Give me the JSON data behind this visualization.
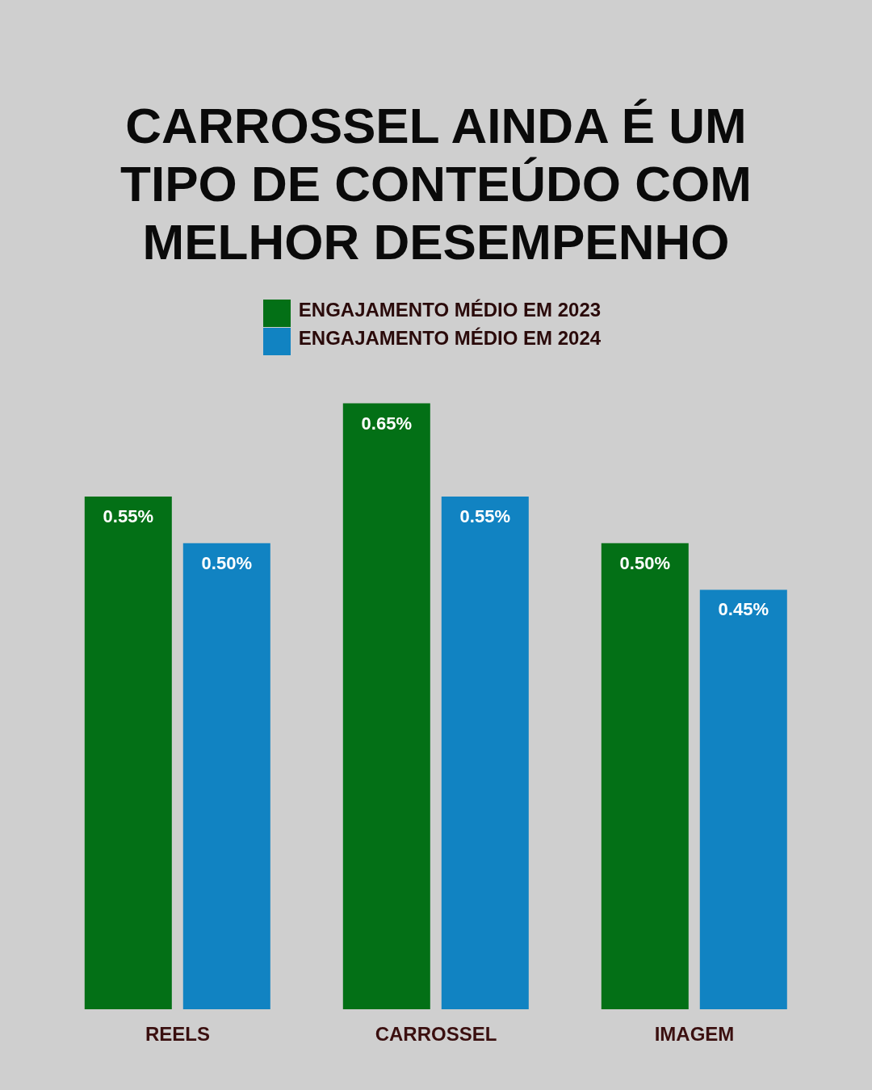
{
  "chart_data": {
    "type": "bar",
    "title": "CARROSSEL AINDA É UM TIPO DE CONTEÚDO COM MELHOR DESEMPENHO",
    "categories": [
      "REELS",
      "CARROSSEL",
      "IMAGEM"
    ],
    "series": [
      {
        "name": "ENGAJAMENTO MÉDIO EM 2023",
        "color": "#037016",
        "values": [
          0.55,
          0.65,
          0.5
        ],
        "value_labels": [
          "0.55%",
          "0.65%",
          "0.50%"
        ]
      },
      {
        "name": "ENGAJAMENTO MÉDIO EM 2024",
        "color": "#1183c2",
        "values": [
          0.5,
          0.55,
          0.45
        ],
        "value_labels": [
          "0.50%",
          "0.55%",
          "0.45%"
        ]
      }
    ],
    "legend": "top"
  }
}
